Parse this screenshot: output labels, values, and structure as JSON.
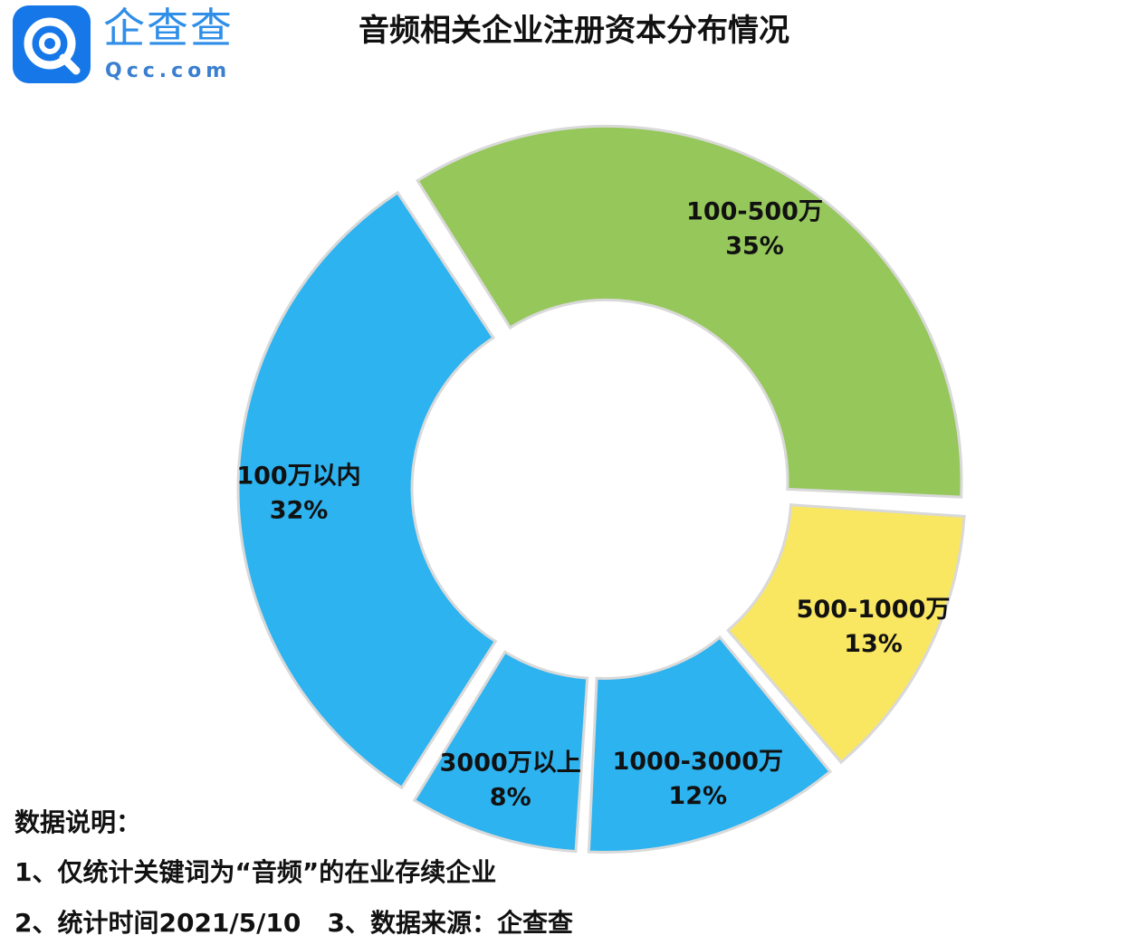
{
  "logo": {
    "name": "企查查",
    "domain": "Qcc.com"
  },
  "colors": {
    "blue": "#2db3f0",
    "green": "#95c75a",
    "yellow": "#f9e661",
    "logo_blue": "#1677e8"
  },
  "chart_data": {
    "type": "pie",
    "donut": true,
    "title": "音频相关企业注册资本分布情况",
    "slices": [
      {
        "label": "100万以内",
        "value_label": "32%",
        "value": 32,
        "color": "#2db3f0"
      },
      {
        "label": "100-500万",
        "value_label": "35%",
        "value": 35,
        "color": "#95c75a"
      },
      {
        "label": "500-1000万",
        "value_label": "13%",
        "value": 13,
        "color": "#f9e661"
      },
      {
        "label": "1000-3000万",
        "value_label": "12%",
        "value": 12,
        "color": "#2db3f0"
      },
      {
        "label": "3000万以上",
        "value_label": "8%",
        "value": 8,
        "color": "#2db3f0"
      }
    ]
  },
  "notes": {
    "heading": "数据说明：",
    "line1": "1、仅统计关键词为“音频”的在业存续企业",
    "line2": "2、统计时间2021/5/10   3、数据来源：企查查"
  }
}
